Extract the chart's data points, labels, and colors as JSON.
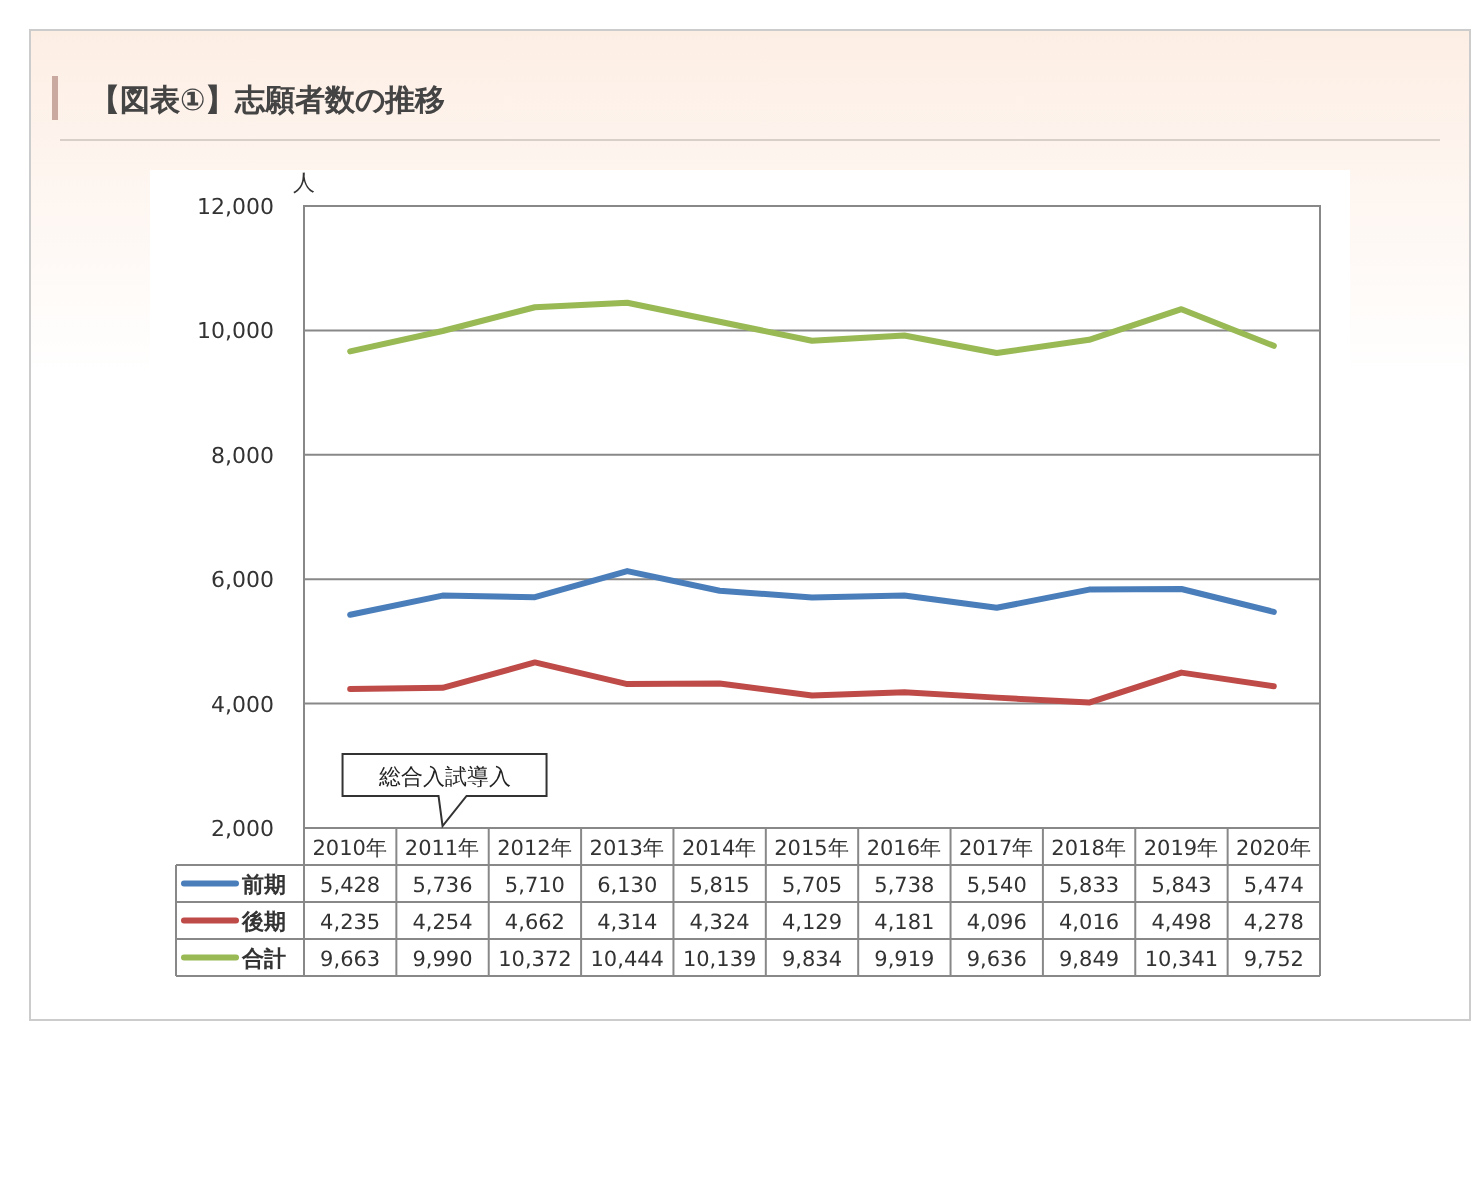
{
  "chart_data": {
    "type": "line",
    "title": "【図表①】志願者数の推移",
    "ylabel": "人",
    "categories": [
      "2010年",
      "2011年",
      "2012年",
      "2013年",
      "2014年",
      "2015年",
      "2016年",
      "2017年",
      "2018年",
      "2019年",
      "2020年"
    ],
    "series": [
      {
        "name": "前期",
        "color": "#4a7ebb",
        "values": [
          5428,
          5736,
          5710,
          6130,
          5815,
          5705,
          5738,
          5540,
          5833,
          5843,
          5474
        ],
        "value_labels": [
          "5,428",
          "5,736",
          "5,710",
          "6,130",
          "5,815",
          "5,705",
          "5,738",
          "5,540",
          "5,833",
          "5,843",
          "5,474"
        ]
      },
      {
        "name": "後期",
        "color": "#be4b48",
        "values": [
          4235,
          4254,
          4662,
          4314,
          4324,
          4129,
          4181,
          4096,
          4016,
          4498,
          4278
        ],
        "value_labels": [
          "4,235",
          "4,254",
          "4,662",
          "4,314",
          "4,324",
          "4,129",
          "4,181",
          "4,096",
          "4,016",
          "4,498",
          "4,278"
        ]
      },
      {
        "name": "合計",
        "color": "#98b954",
        "values": [
          9663,
          9990,
          10372,
          10444,
          10139,
          9834,
          9919,
          9636,
          9849,
          10341,
          9752
        ],
        "value_labels": [
          "9,663",
          "9,990",
          "10,372",
          "10,444",
          "10,139",
          "9,834",
          "9,919",
          "9,636",
          "9,849",
          "10,341",
          "9,752"
        ]
      }
    ],
    "ylim": [
      2000,
      12000
    ],
    "yticks": [
      {
        "value": 2000,
        "label": "2,000"
      },
      {
        "value": 4000,
        "label": "4,000"
      },
      {
        "value": 6000,
        "label": "6,000"
      },
      {
        "value": 8000,
        "label": "8,000"
      },
      {
        "value": 10000,
        "label": "10,000"
      },
      {
        "value": 12000,
        "label": "12,000"
      }
    ],
    "grid": "y",
    "legend": "bottom",
    "marker": "none",
    "line_style": "solid",
    "annotations": [
      "総合入試導入"
    ]
  }
}
